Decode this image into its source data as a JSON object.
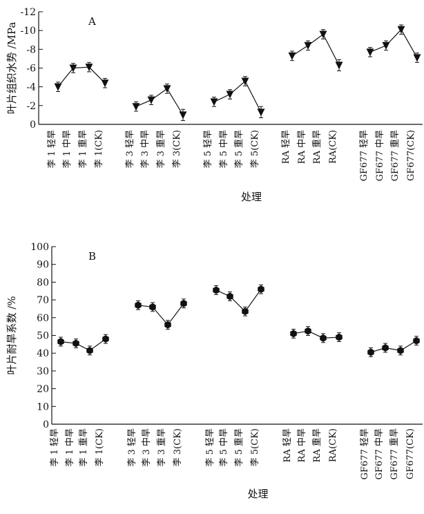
{
  "chart_data": [
    {
      "type": "line",
      "panel_label": "A",
      "xlabel": "处理",
      "ylabel": "叶片组织水势 /MPa",
      "ylim": [
        0,
        -12
      ],
      "reversed_y": true,
      "yticks": [
        0,
        -2,
        -4,
        -6,
        -8,
        -10,
        -12
      ],
      "ytick_labels": [
        "0",
        "-2",
        "-4",
        "-6",
        "-8",
        "-10",
        "-12"
      ],
      "marker": "triangle-down",
      "groups": [
        {
          "categories": [
            "李 1 轻旱",
            "李 1 中旱",
            "李 1 重旱",
            "李 1(CK)"
          ],
          "values": [
            -4.0,
            -6.0,
            -6.1,
            -4.4
          ],
          "errors": [
            0.5,
            0.5,
            0.5,
            0.5
          ]
        },
        {
          "categories": [
            "李 3 轻旱",
            "李 3 中旱",
            "李 3 重旱",
            "李 3(CK)"
          ],
          "values": [
            -1.9,
            -2.6,
            -3.8,
            -1.0
          ],
          "errors": [
            0.5,
            0.5,
            0.5,
            0.6
          ]
        },
        {
          "categories": [
            "李 5 轻旱",
            "李 5 中旱",
            "李 5 重旱",
            "李 5(CK)"
          ],
          "values": [
            -2.4,
            -3.2,
            -4.6,
            -1.3
          ],
          "errors": [
            0.5,
            0.5,
            0.5,
            0.6
          ]
        },
        {
          "categories": [
            "RA 轻旱",
            "RA 中旱",
            "RA 重旱",
            "RA(CK)"
          ],
          "values": [
            -7.3,
            -8.4,
            -9.6,
            -6.3
          ],
          "errors": [
            0.5,
            0.5,
            0.5,
            0.6
          ]
        },
        {
          "categories": [
            "GF677 轻旱",
            "GF677 中旱",
            "GF677 重旱",
            "GF677(CK)"
          ],
          "values": [
            -7.7,
            -8.4,
            -10.1,
            -7.1
          ],
          "errors": [
            0.5,
            0.5,
            0.5,
            0.5
          ]
        }
      ]
    },
    {
      "type": "line",
      "panel_label": "B",
      "xlabel": "处理",
      "ylabel": "叶片耐旱系数 /%",
      "ylim": [
        0,
        100
      ],
      "reversed_y": false,
      "yticks": [
        0,
        10,
        20,
        30,
        40,
        50,
        60,
        70,
        80,
        90,
        100
      ],
      "ytick_labels": [
        "0",
        "10",
        "20",
        "30",
        "40",
        "50",
        "60",
        "70",
        "80",
        "90",
        "100"
      ],
      "marker": "hexagon",
      "groups": [
        {
          "categories": [
            "李 1 轻旱",
            "李 1 中旱",
            "李 1 重旱",
            "李 1(CK)"
          ],
          "values": [
            46.5,
            45.5,
            41.5,
            48
          ],
          "errors": [
            2.5,
            2.5,
            2.5,
            2.5
          ]
        },
        {
          "categories": [
            "李 3 轻旱",
            "李 3 中旱",
            "李 3 重旱",
            "李 3(CK)"
          ],
          "values": [
            67,
            66,
            56,
            68
          ],
          "errors": [
            2.5,
            2.5,
            2.5,
            2.5
          ]
        },
        {
          "categories": [
            "李 5 轻旱",
            "李 5 中旱",
            "李 5 重旱",
            "李 5(CK)"
          ],
          "values": [
            75.5,
            72,
            63.5,
            76
          ],
          "errors": [
            2.5,
            2.5,
            2.5,
            2.5
          ]
        },
        {
          "categories": [
            "RA 轻旱",
            "RA 中旱",
            "RA 重旱",
            "RA(CK)"
          ],
          "values": [
            51,
            52.5,
            48.5,
            49
          ],
          "errors": [
            2.5,
            2.5,
            2.5,
            2.5
          ]
        },
        {
          "categories": [
            "GF677 轻旱",
            "GF677 中旱",
            "GF677 重旱",
            "GF677(CK)"
          ],
          "values": [
            40.5,
            43,
            41.5,
            47
          ],
          "errors": [
            2.5,
            2.5,
            2.5,
            2.5
          ]
        }
      ]
    }
  ]
}
